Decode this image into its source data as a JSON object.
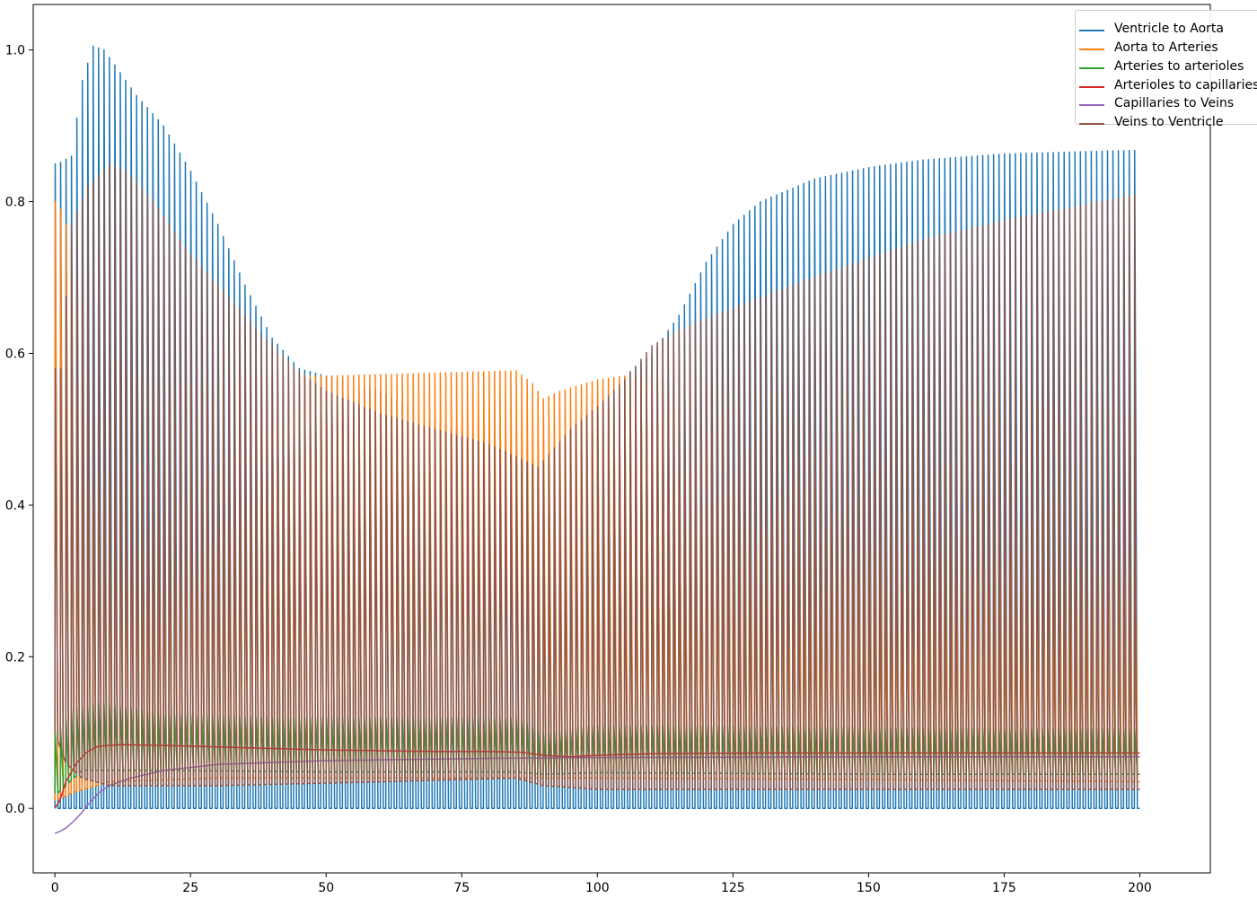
{
  "chart_data": {
    "type": "line",
    "title": "",
    "xlabel": "",
    "ylabel": "",
    "xlim": [
      -4,
      213
    ],
    "ylim": [
      -0.085,
      1.06
    ],
    "x_ticks": [
      0,
      25,
      50,
      75,
      100,
      125,
      150,
      175,
      200
    ],
    "y_ticks": [
      0.0,
      0.2,
      0.4,
      0.6,
      0.8,
      1.0
    ],
    "x_tick_labels": [
      "0",
      "25",
      "50",
      "75",
      "100",
      "125",
      "150",
      "175",
      "200"
    ],
    "y_tick_labels": [
      "0.0",
      "0.2",
      "0.4",
      "0.6",
      "0.8",
      "1.0"
    ],
    "grid": false,
    "legend_position": "top-right",
    "cycle_period": 1.0,
    "series": [
      {
        "name": "Ventricle to Aorta",
        "color": "#1f77b4",
        "style": "pulsatile",
        "peak_envelope": [
          [
            0.5,
            0.85
          ],
          [
            3,
            0.86
          ],
          [
            5,
            0.96
          ],
          [
            7,
            1.005
          ],
          [
            9,
            1.0
          ],
          [
            12,
            0.97
          ],
          [
            15,
            0.94
          ],
          [
            20,
            0.9
          ],
          [
            25,
            0.84
          ],
          [
            30,
            0.77
          ],
          [
            35,
            0.69
          ],
          [
            40,
            0.62
          ],
          [
            45,
            0.58
          ],
          [
            50,
            0.57
          ],
          [
            60,
            0.55
          ],
          [
            70,
            0.51
          ],
          [
            80,
            0.49
          ],
          [
            89,
            0.45
          ],
          [
            95,
            0.5
          ],
          [
            100,
            0.55
          ],
          [
            105,
            0.57
          ],
          [
            110,
            0.6
          ],
          [
            115,
            0.65
          ],
          [
            120,
            0.72
          ],
          [
            125,
            0.77
          ],
          [
            130,
            0.8
          ],
          [
            140,
            0.83
          ],
          [
            150,
            0.845
          ],
          [
            160,
            0.855
          ],
          [
            175,
            0.863
          ],
          [
            200,
            0.868
          ]
        ],
        "trough_envelope": [
          [
            0,
            0.0
          ],
          [
            200,
            0.0
          ]
        ]
      },
      {
        "name": "Aorta to Arteries",
        "color": "#ff7f0e",
        "style": "pulsatile",
        "peak_envelope": [
          [
            0.5,
            0.8
          ],
          [
            2,
            0.77
          ],
          [
            5,
            0.68
          ],
          [
            10,
            0.6
          ],
          [
            15,
            0.57
          ],
          [
            20,
            0.56
          ],
          [
            30,
            0.565
          ],
          [
            40,
            0.57
          ],
          [
            50,
            0.57
          ],
          [
            60,
            0.572
          ],
          [
            70,
            0.574
          ],
          [
            80,
            0.576
          ],
          [
            85,
            0.577
          ],
          [
            88,
            0.56
          ],
          [
            90,
            0.54
          ],
          [
            93,
            0.55
          ],
          [
            100,
            0.565
          ],
          [
            105,
            0.57
          ],
          [
            120,
            0.56
          ],
          [
            150,
            0.55
          ],
          [
            175,
            0.54
          ],
          [
            200,
            0.52
          ]
        ],
        "trough_envelope": [
          [
            0,
            0.01
          ],
          [
            3,
            0.02
          ],
          [
            10,
            0.035
          ],
          [
            30,
            0.04
          ],
          [
            60,
            0.04
          ],
          [
            100,
            0.04
          ],
          [
            150,
            0.038
          ],
          [
            200,
            0.035
          ]
        ]
      },
      {
        "name": "Arteries to arterioles",
        "color": "#2ca02c",
        "style": "pulsatile",
        "peak_envelope": [
          [
            0.5,
            0.1
          ],
          [
            3,
            0.13
          ],
          [
            8,
            0.14
          ],
          [
            20,
            0.125
          ],
          [
            40,
            0.12
          ],
          [
            60,
            0.12
          ],
          [
            85,
            0.12
          ],
          [
            90,
            0.1
          ],
          [
            100,
            0.11
          ],
          [
            150,
            0.107
          ],
          [
            200,
            0.105
          ]
        ],
        "trough_envelope": [
          [
            0.5,
            0.02
          ],
          [
            5,
            0.05
          ],
          [
            20,
            0.05
          ],
          [
            50,
            0.048
          ],
          [
            85,
            0.048
          ],
          [
            90,
            0.045
          ],
          [
            100,
            0.047
          ],
          [
            150,
            0.045
          ],
          [
            200,
            0.045
          ]
        ]
      },
      {
        "name": "Arterioles to capillaries",
        "color": "#d62728",
        "style": "smooth",
        "points": [
          [
            0,
            0.0
          ],
          [
            1,
            0.012
          ],
          [
            2,
            0.035
          ],
          [
            4,
            0.06
          ],
          [
            6,
            0.075
          ],
          [
            8,
            0.082
          ],
          [
            12,
            0.084
          ],
          [
            20,
            0.083
          ],
          [
            30,
            0.081
          ],
          [
            40,
            0.079
          ],
          [
            50,
            0.077
          ],
          [
            60,
            0.076
          ],
          [
            70,
            0.075
          ],
          [
            80,
            0.075
          ],
          [
            86,
            0.074
          ],
          [
            90,
            0.07
          ],
          [
            95,
            0.068
          ],
          [
            100,
            0.07
          ],
          [
            110,
            0.072
          ],
          [
            130,
            0.073
          ],
          [
            160,
            0.073
          ],
          [
            200,
            0.073
          ]
        ]
      },
      {
        "name": "Capillaries to Veins",
        "color": "#9467bd",
        "style": "smooth",
        "points": [
          [
            0,
            -0.033
          ],
          [
            1,
            -0.03
          ],
          [
            2,
            -0.026
          ],
          [
            3,
            -0.02
          ],
          [
            4,
            -0.013
          ],
          [
            5,
            -0.005
          ],
          [
            6,
            0.004
          ],
          [
            7,
            0.012
          ],
          [
            8,
            0.02
          ],
          [
            10,
            0.03
          ],
          [
            14,
            0.04
          ],
          [
            20,
            0.05
          ],
          [
            30,
            0.058
          ],
          [
            50,
            0.063
          ],
          [
            80,
            0.066
          ],
          [
            100,
            0.067
          ],
          [
            150,
            0.068
          ],
          [
            200,
            0.068
          ]
        ]
      },
      {
        "name": "Veins to Ventricle",
        "color": "#8c564b",
        "style": "pulsatile",
        "peak_envelope": [
          [
            0,
            0.58
          ],
          [
            1,
            0.58
          ],
          [
            3,
            0.77
          ],
          [
            6,
            0.82
          ],
          [
            10,
            0.85
          ],
          [
            13,
            0.84
          ],
          [
            18,
            0.8
          ],
          [
            25,
            0.73
          ],
          [
            30,
            0.69
          ],
          [
            35,
            0.65
          ],
          [
            40,
            0.61
          ],
          [
            45,
            0.575
          ],
          [
            50,
            0.55
          ],
          [
            60,
            0.52
          ],
          [
            70,
            0.5
          ],
          [
            80,
            0.48
          ],
          [
            89,
            0.45
          ],
          [
            95,
            0.5
          ],
          [
            100,
            0.53
          ],
          [
            105,
            0.565
          ],
          [
            110,
            0.61
          ],
          [
            115,
            0.63
          ],
          [
            125,
            0.66
          ],
          [
            140,
            0.7
          ],
          [
            150,
            0.725
          ],
          [
            160,
            0.75
          ],
          [
            175,
            0.775
          ],
          [
            200,
            0.81
          ]
        ],
        "trough_envelope": [
          [
            0,
            0.1
          ],
          [
            2,
            0.06
          ],
          [
            5,
            0.04
          ],
          [
            10,
            0.03
          ],
          [
            30,
            0.03
          ],
          [
            60,
            0.035
          ],
          [
            85,
            0.04
          ],
          [
            90,
            0.03
          ],
          [
            100,
            0.025
          ],
          [
            150,
            0.025
          ],
          [
            200,
            0.025
          ]
        ],
        "mid_envelope": [
          [
            1,
            0.32
          ],
          [
            3,
            0.28
          ],
          [
            8,
            0.24
          ],
          [
            15,
            0.215
          ],
          [
            20,
            0.21
          ],
          [
            40,
            0.225
          ],
          [
            60,
            0.245
          ],
          [
            85,
            0.265
          ],
          [
            90,
            0.2
          ],
          [
            100,
            0.19
          ],
          [
            150,
            0.165
          ],
          [
            200,
            0.145
          ]
        ]
      }
    ]
  }
}
